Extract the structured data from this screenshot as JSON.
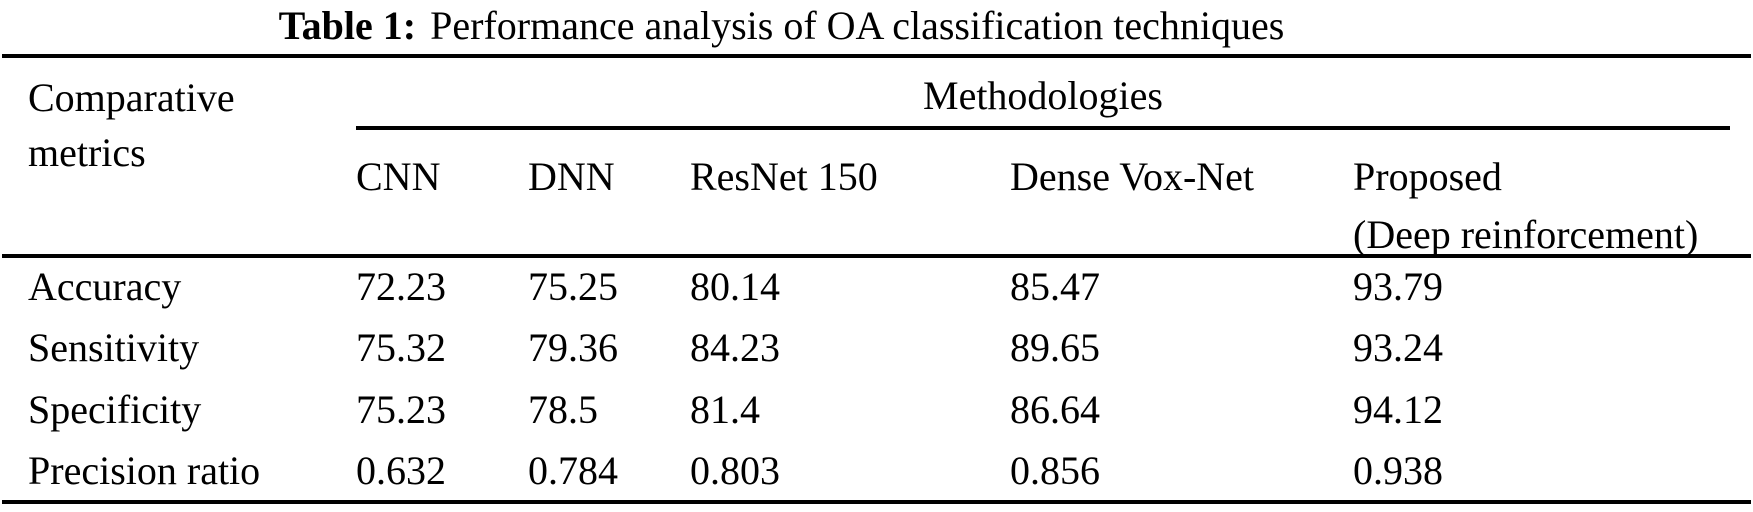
{
  "caption": {
    "label": "Table 1:",
    "text": "Performance analysis of OA classification techniques"
  },
  "table": {
    "row_header": "Comparative metrics",
    "group_header": "Methodologies",
    "columns": [
      {
        "name": "CNN",
        "sub": ""
      },
      {
        "name": "DNN",
        "sub": ""
      },
      {
        "name": "ResNet 150",
        "sub": ""
      },
      {
        "name": "Dense Vox-Net",
        "sub": ""
      },
      {
        "name": "Proposed",
        "sub": "(Deep reinforcement)"
      }
    ],
    "rows": [
      {
        "metric": "Accuracy",
        "values": [
          "72.23",
          "75.25",
          "80.14",
          "85.47",
          "93.79"
        ]
      },
      {
        "metric": "Sensitivity",
        "values": [
          "75.32",
          "79.36",
          "84.23",
          "89.65",
          "93.24"
        ]
      },
      {
        "metric": "Specificity",
        "values": [
          "75.23",
          "78.5",
          "81.4",
          "86.64",
          "94.12"
        ]
      },
      {
        "metric": "Precision ratio",
        "values": [
          "0.632",
          "0.784",
          "0.803",
          "0.856",
          "0.938"
        ]
      }
    ]
  }
}
